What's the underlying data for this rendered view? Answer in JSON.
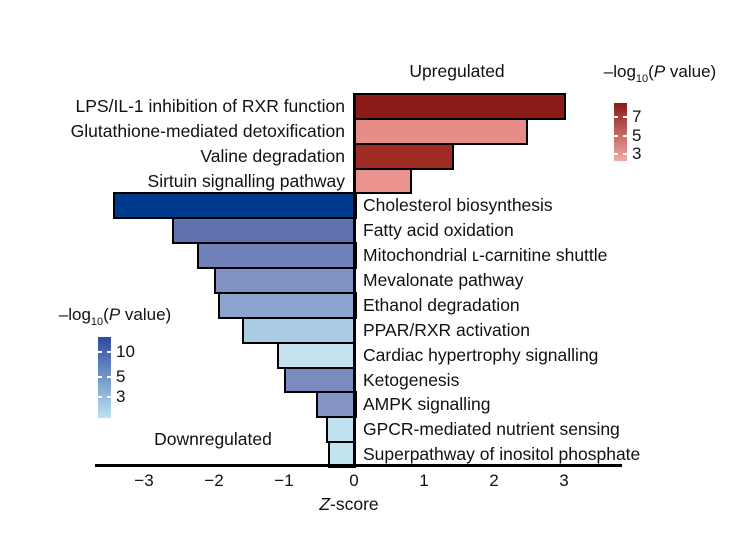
{
  "figure": {
    "upregulated_label": "Upregulated",
    "downregulated_label": "Downregulated",
    "xaxis": {
      "label_italic": "Z",
      "label_rest": "-score",
      "tick_labels": [
        "−3",
        "−2",
        "−1",
        "0",
        "1",
        "2",
        "3"
      ],
      "tick_values": [
        -3,
        -2,
        -1,
        0,
        1,
        2,
        3
      ]
    }
  },
  "legend_red": {
    "title": {
      "pre": "–log",
      "sub": "10",
      "paren": "(",
      "p": "P",
      "post": " value)"
    },
    "tick_labels": [
      "7",
      "5",
      "3"
    ],
    "top_color": "#8a1a15",
    "bottom_color": "#f2aba7"
  },
  "legend_blue": {
    "title": {
      "pre": "–log",
      "sub": "10",
      "paren": "(",
      "p": "P",
      "post": " value)"
    },
    "tick_labels": [
      "10",
      "5",
      "3"
    ],
    "top_color": "#2c4a9d",
    "bottom_color": "#bce3f2"
  },
  "chart_data": {
    "type": "bar",
    "orientation": "horizontal-diverging",
    "xlabel": "Z-score",
    "xlim": [
      -3.7,
      3.8
    ],
    "x_ticks": [
      -3,
      -2,
      -1,
      0,
      1,
      2,
      3
    ],
    "color_encoding": "-log10(P value); darker fill = more significant",
    "legend_upregulated_ticks": [
      7,
      5,
      3
    ],
    "legend_downregulated_ticks": [
      10,
      5,
      3
    ],
    "bars": [
      {
        "label": "LPS/IL-1 inhibition of RXR function",
        "z": 3.0,
        "direction": "up",
        "color": "#8a1a15"
      },
      {
        "label": "Glutathione-mediated detoxification",
        "z": 2.45,
        "direction": "up",
        "color": "#e78d88"
      },
      {
        "label": "Valine degradation",
        "z": 1.4,
        "direction": "up",
        "color": "#a02c24"
      },
      {
        "label": "Sirtuin signalling pathway",
        "z": 0.8,
        "direction": "up",
        "color": "#ea938f"
      },
      {
        "label": "Cholesterol biosynthesis",
        "z": -3.45,
        "direction": "down",
        "color": "#003a8d"
      },
      {
        "label": "Fatty acid oxidation",
        "z": -2.6,
        "direction": "down",
        "color": "#5f72ae"
      },
      {
        "label": "Mitochondrial ʟ-carnitine shuttle",
        "z": -2.25,
        "direction": "down",
        "color": "#7282b8"
      },
      {
        "label": "Mevalonate pathway",
        "z": -2.0,
        "direction": "down",
        "color": "#8093c3"
      },
      {
        "label": "Ethanol degradation",
        "z": -1.95,
        "direction": "down",
        "color": "#8da5ce"
      },
      {
        "label": "PPAR/RXR activation",
        "z": -1.6,
        "direction": "down",
        "color": "#abcde3"
      },
      {
        "label": "Cardiac hypertrophy signalling",
        "z": -1.1,
        "direction": "down",
        "color": "#c6e1f0"
      },
      {
        "label": "Ketogenesis",
        "z": -1.0,
        "direction": "down",
        "color": "#7b8abf"
      },
      {
        "label": "AMPK signalling",
        "z": -0.55,
        "direction": "down",
        "color": "#8394c5"
      },
      {
        "label": "GPCR-mediated nutrient sensing",
        "z": -0.4,
        "direction": "down",
        "color": "#c0e1f0"
      },
      {
        "label": "Superpathway of inositol phosphate",
        "z": -0.37,
        "direction": "down",
        "color": "#c3e3f1"
      }
    ]
  }
}
